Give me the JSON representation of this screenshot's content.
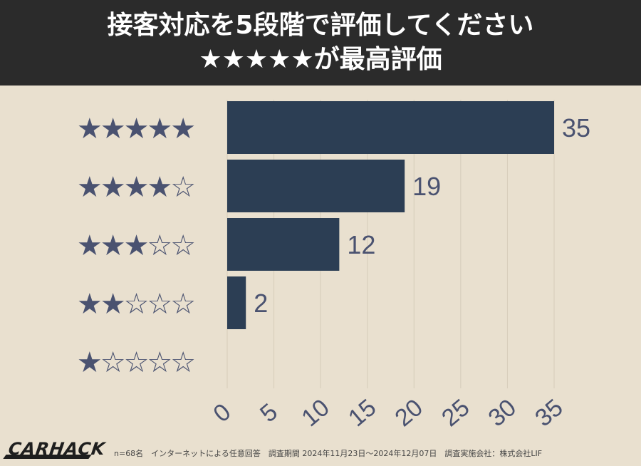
{
  "header": {
    "title_line1": "接客対応を5段階で評価してください",
    "title_line2": "★★★★★が最高評価"
  },
  "chart_data": {
    "type": "bar",
    "orientation": "horizontal",
    "categories": [
      "★★★★★",
      "★★★★☆",
      "★★★☆☆",
      "★★☆☆☆",
      "★☆☆☆☆"
    ],
    "values": [
      35,
      19,
      12,
      2,
      0
    ],
    "value_labels": [
      "35",
      "19",
      "12",
      "2",
      ""
    ],
    "xlim": [
      0,
      35
    ],
    "xticks": [
      "0",
      "5",
      "10",
      "15",
      "20",
      "25",
      "30",
      "35"
    ],
    "xtick_values": [
      0,
      5,
      10,
      15,
      20,
      25,
      30,
      35
    ],
    "grid": true,
    "title": "",
    "xlabel": "",
    "ylabel": ""
  },
  "colors": {
    "background": "#e9e0cf",
    "header_background": "#2b2b2b",
    "bar": "#2c3e54",
    "star": "#4a5270",
    "value_label": "#4a5270",
    "grid": "#d6ccba"
  },
  "footer": {
    "logo": "CARHACK",
    "note": "n=68名　インターネットによる任意回答　調査期間 2024年11月23日〜2024年12月07日　調査実施会社：株式会社LIF"
  }
}
